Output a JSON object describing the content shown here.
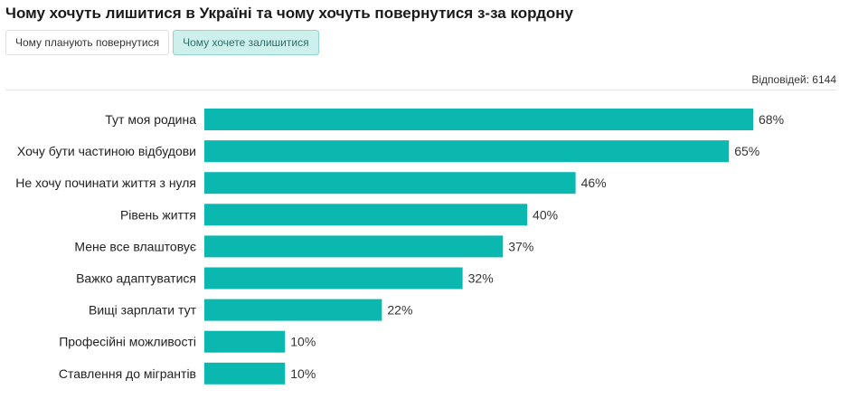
{
  "title": "Чому хочуть лишитися в Україні та чому хочуть повернутися з-за кордону",
  "tabs": [
    {
      "label": "Чому планують повернутися",
      "active": false
    },
    {
      "label": "Чому хочете залишитися",
      "active": true
    }
  ],
  "responses_label": "Відповідей: 6144",
  "colors": {
    "bar": "#0bb8b0"
  },
  "chart_data": {
    "type": "bar",
    "orientation": "horizontal",
    "categories": [
      "Тут моя родина",
      "Хочу бути частиною відбудови",
      "Не хочу починати життя з нуля",
      "Рівень життя",
      "Мене все влаштовує",
      "Важко адаптуватися",
      "Вищі зарплати тут",
      "Професійні можливості",
      "Ставлення до мігрантів"
    ],
    "values": [
      68,
      65,
      46,
      40,
      37,
      32,
      22,
      10,
      10
    ],
    "value_suffix": "%",
    "xlim": [
      0,
      68
    ],
    "grid": false,
    "legend": "none"
  }
}
